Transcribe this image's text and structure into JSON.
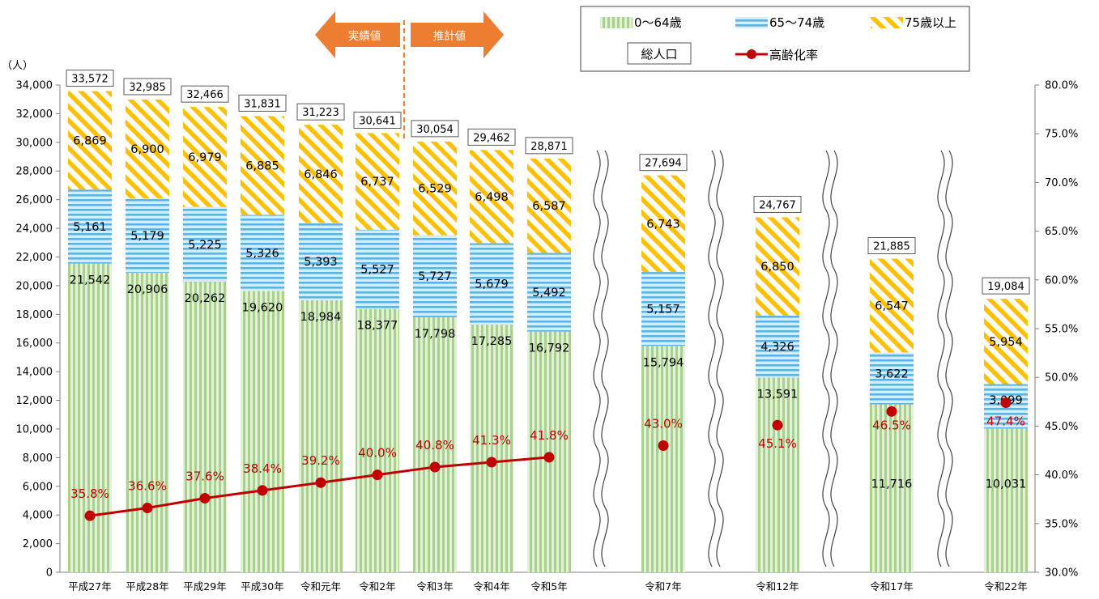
{
  "chart_data": {
    "type": "bar",
    "stacked": true,
    "categories": [
      "平成27年",
      "平成28年",
      "平成29年",
      "平成30年",
      "令和元年",
      "令和2年",
      "令和3年",
      "令和4年",
      "令和5年",
      "令和7年",
      "令和12年",
      "令和17年",
      "令和22年"
    ],
    "series": [
      {
        "name": "0～64歳",
        "values": [
          21542,
          20906,
          20262,
          19620,
          18984,
          18377,
          17798,
          17285,
          16792,
          15794,
          13591,
          11716,
          10031
        ]
      },
      {
        "name": "65～74歳",
        "values": [
          5161,
          5179,
          5225,
          5326,
          5393,
          5527,
          5727,
          5679,
          5492,
          5157,
          4326,
          3622,
          3099
        ]
      },
      {
        "name": "75歳以上",
        "values": [
          6869,
          6900,
          6979,
          6885,
          6846,
          6737,
          6529,
          6498,
          6587,
          6743,
          6850,
          6547,
          5954
        ]
      }
    ],
    "totals_name": "総人口",
    "totals": [
      33572,
      32985,
      32466,
      31831,
      31223,
      30641,
      30054,
      29462,
      28871,
      27694,
      24767,
      21885,
      19084
    ],
    "line_series": {
      "name": "高齢化率",
      "values": [
        35.8,
        36.6,
        37.6,
        38.4,
        39.2,
        40.0,
        40.8,
        41.3,
        41.8,
        43.0,
        45.1,
        46.5,
        47.4
      ],
      "axis": "right"
    },
    "left_axis": {
      "unit": "（人）",
      "ylim": [
        0,
        34000
      ],
      "ticks": [
        "0",
        "2,000",
        "4,000",
        "6,000",
        "8,000",
        "10,000",
        "12,000",
        "14,000",
        "16,000",
        "18,000",
        "20,000",
        "22,000",
        "24,000",
        "26,000",
        "28,000",
        "30,000",
        "32,000",
        "34,000"
      ]
    },
    "right_axis": {
      "ylim": [
        30,
        80
      ],
      "ticks": [
        "30.0%",
        "35.0%",
        "40.0%",
        "45.0%",
        "50.0%",
        "55.0%",
        "60.0%",
        "65.0%",
        "70.0%",
        "75.0%",
        "80.0%"
      ]
    },
    "annotations": {
      "actual": "実績値",
      "estimate": "推計値"
    },
    "colors": {
      "green": "#a9d18e",
      "green_bg": "#e2efd9",
      "blue": "#5bb4e5",
      "blue_bg": "#ddebf7",
      "orange": "#ffc000",
      "line": "#c00000",
      "arrow": "#ed7d31"
    }
  }
}
